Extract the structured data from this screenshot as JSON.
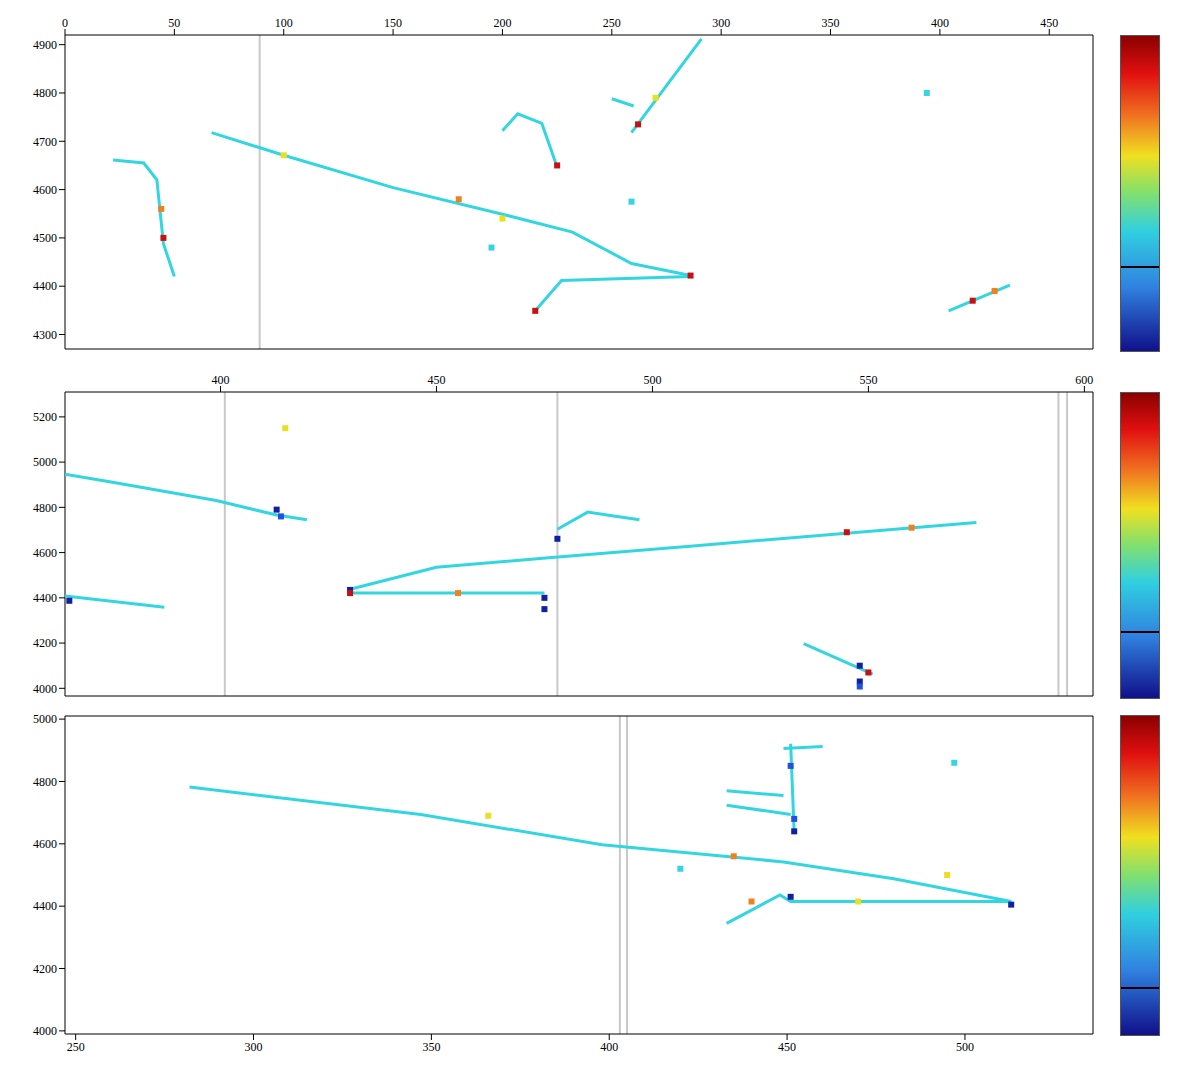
{
  "chart_data": [
    {
      "type": "scatter",
      "xlim": [
        0,
        470
      ],
      "xticks": [
        0,
        50,
        100,
        150,
        200,
        250,
        300,
        350,
        400,
        450
      ],
      "ylim": [
        4270,
        4920
      ],
      "yticks": [
        4300,
        4400,
        4500,
        4600,
        4700,
        4800,
        4900
      ],
      "tracks": [
        {
          "points": [
            [
              67,
              4718
            ],
            [
              100,
              4671
            ],
            [
              150,
              4604
            ],
            [
              200,
              4549
            ],
            [
              232,
              4512
            ],
            [
              259,
              4447
            ],
            [
              286,
              4422
            ]
          ],
          "color": "#33d6e0"
        },
        {
          "points": [
            [
              286,
              4420
            ],
            [
              227,
              4412
            ],
            [
              215,
              4349
            ]
          ],
          "color": "#33d6e0"
        },
        {
          "points": [
            [
              22,
              4661
            ],
            [
              36,
              4655
            ],
            [
              42,
              4620
            ],
            [
              45,
              4488
            ],
            [
              50,
              4420
            ]
          ],
          "color": "#33d6e0"
        },
        {
          "points": [
            [
              200,
              4722
            ],
            [
              207,
              4757
            ],
            [
              218,
              4737
            ],
            [
              225,
              4647
            ]
          ],
          "color": "#33d6e0"
        },
        {
          "points": [
            [
              250,
              4788
            ],
            [
              260,
              4773
            ]
          ],
          "color": "#33d6e0"
        },
        {
          "points": [
            [
              259,
              4718
            ],
            [
              275,
              4815
            ],
            [
              291,
              4912
            ]
          ],
          "color": "#33d6e0"
        },
        {
          "points": [
            [
              404,
              4349
            ],
            [
              432,
              4402
            ]
          ],
          "color": "#33d6e0"
        }
      ],
      "hits": [
        {
          "x": 286,
          "y": 4422,
          "color": "#c81010"
        },
        {
          "x": 215,
          "y": 4349,
          "color": "#c81010"
        },
        {
          "x": 45,
          "y": 4500,
          "color": "#c81010"
        },
        {
          "x": 44,
          "y": 4560,
          "color": "#f08020"
        },
        {
          "x": 100,
          "y": 4671,
          "color": "#e8e020"
        },
        {
          "x": 180,
          "y": 4580,
          "color": "#f08020"
        },
        {
          "x": 225,
          "y": 4650,
          "color": "#c81010"
        },
        {
          "x": 262,
          "y": 4735,
          "color": "#c81010"
        },
        {
          "x": 270,
          "y": 4790,
          "color": "#e8e020"
        },
        {
          "x": 415,
          "y": 4370,
          "color": "#c81010"
        },
        {
          "x": 425,
          "y": 4390,
          "color": "#f08020"
        },
        {
          "x": 200,
          "y": 4540,
          "color": "#e8e020"
        },
        {
          "x": 195,
          "y": 4480,
          "color": "#33d6e0"
        },
        {
          "x": 259,
          "y": 4575,
          "color": "#33d6e0"
        },
        {
          "x": 394,
          "y": 4800,
          "color": "#33d6e0"
        }
      ],
      "dead_channels": [
        89
      ]
    },
    {
      "type": "scatter",
      "xlim": [
        364,
        602
      ],
      "xticks": [
        400,
        450,
        500,
        550,
        600
      ],
      "ylim": [
        3966,
        5310
      ],
      "yticks": [
        4000,
        4200,
        4400,
        4600,
        4800,
        5000,
        5200
      ],
      "tracks": [
        {
          "points": [
            [
              364,
              4947
            ],
            [
              374,
              4914
            ],
            [
              399,
              4830
            ],
            [
              413,
              4766
            ],
            [
              420,
              4745
            ]
          ],
          "color": "#33d6e0"
        },
        {
          "points": [
            [
              364,
              4408
            ],
            [
              387,
              4358
            ]
          ],
          "color": "#33d6e0"
        },
        {
          "points": [
            [
              430,
              4438
            ],
            [
              450,
              4535
            ],
            [
              476,
              4577
            ],
            [
              508,
              4627
            ],
            [
              575,
              4733
            ]
          ],
          "color": "#33d6e0"
        },
        {
          "points": [
            [
              430,
              4421
            ],
            [
              475,
              4421
            ]
          ],
          "color": "#33d6e0"
        },
        {
          "points": [
            [
              478,
              4703
            ],
            [
              485,
              4779
            ],
            [
              491,
              4762
            ],
            [
              497,
              4745
            ]
          ],
          "color": "#33d6e0"
        },
        {
          "points": [
            [
              535,
              4198
            ],
            [
              551,
              4063
            ]
          ],
          "color": "#33d6e0"
        }
      ],
      "hits": [
        {
          "x": 413,
          "y": 4790,
          "color": "#1020a0"
        },
        {
          "x": 414,
          "y": 4760,
          "color": "#2050e0"
        },
        {
          "x": 365,
          "y": 4387,
          "color": "#1020a0"
        },
        {
          "x": 430,
          "y": 4435,
          "color": "#1020a0"
        },
        {
          "x": 475,
          "y": 4400,
          "color": "#1020a0"
        },
        {
          "x": 475,
          "y": 4350,
          "color": "#1020a0"
        },
        {
          "x": 478,
          "y": 4661,
          "color": "#1020a0"
        },
        {
          "x": 548,
          "y": 4100,
          "color": "#1020a0"
        },
        {
          "x": 548,
          "y": 4030,
          "color": "#1020a0"
        },
        {
          "x": 548,
          "y": 4008,
          "color": "#2050e0"
        },
        {
          "x": 430,
          "y": 4421,
          "color": "#c81010"
        },
        {
          "x": 550,
          "y": 4070,
          "color": "#c81010"
        },
        {
          "x": 545,
          "y": 4690,
          "color": "#c81010"
        },
        {
          "x": 560,
          "y": 4710,
          "color": "#f08020"
        },
        {
          "x": 455,
          "y": 4421,
          "color": "#f08020"
        },
        {
          "x": 415,
          "y": 5150,
          "color": "#e8e020"
        }
      ],
      "dead_channels": [
        401,
        478,
        594,
        596
      ]
    },
    {
      "type": "scatter",
      "xlim": [
        247,
        536
      ],
      "xticks": [
        250,
        300,
        350,
        400,
        450,
        500
      ],
      "ylim": [
        3990,
        5010
      ],
      "yticks": [
        4000,
        4200,
        4400,
        4600,
        4800,
        5000
      ],
      "tracks": [
        {
          "points": [
            [
              282,
              4782
            ],
            [
              347,
              4694
            ],
            [
              398,
              4597
            ],
            [
              449,
              4542
            ],
            [
              480,
              4488
            ],
            [
              513,
              4415
            ]
          ],
          "color": "#33d6e0"
        },
        {
          "points": [
            [
              513,
              4415
            ],
            [
              451,
              4415
            ],
            [
              448,
              4436
            ],
            [
              433,
              4345
            ]
          ],
          "color": "#33d6e0"
        },
        {
          "points": [
            [
              433,
              4770
            ],
            [
              449,
              4755
            ]
          ],
          "color": "#33d6e0"
        },
        {
          "points": [
            [
              433,
              4724
            ],
            [
              451,
              4694
            ]
          ],
          "color": "#33d6e0"
        },
        {
          "points": [
            [
              451,
              4921
            ],
            [
              452,
              4633
            ]
          ],
          "color": "#33d6e0"
        },
        {
          "points": [
            [
              449,
              4906
            ],
            [
              460,
              4912
            ]
          ],
          "color": "#33d6e0"
        }
      ],
      "hits": [
        {
          "x": 513,
          "y": 4405,
          "color": "#1020a0"
        },
        {
          "x": 452,
          "y": 4640,
          "color": "#1020a0"
        },
        {
          "x": 452,
          "y": 4680,
          "color": "#2050e0"
        },
        {
          "x": 451,
          "y": 4430,
          "color": "#1020a0"
        },
        {
          "x": 440,
          "y": 4415,
          "color": "#f08020"
        },
        {
          "x": 470,
          "y": 4415,
          "color": "#e8e020"
        },
        {
          "x": 435,
          "y": 4560,
          "color": "#f08020"
        },
        {
          "x": 495,
          "y": 4500,
          "color": "#e8e020"
        },
        {
          "x": 420,
          "y": 4520,
          "color": "#33d6e0"
        },
        {
          "x": 497,
          "y": 4860,
          "color": "#33d6e0"
        },
        {
          "x": 366,
          "y": 4690,
          "color": "#e8e020"
        },
        {
          "x": 451,
          "y": 4850,
          "color": "#2050e0"
        }
      ],
      "dead_channels": [
        403,
        405
      ]
    }
  ]
}
